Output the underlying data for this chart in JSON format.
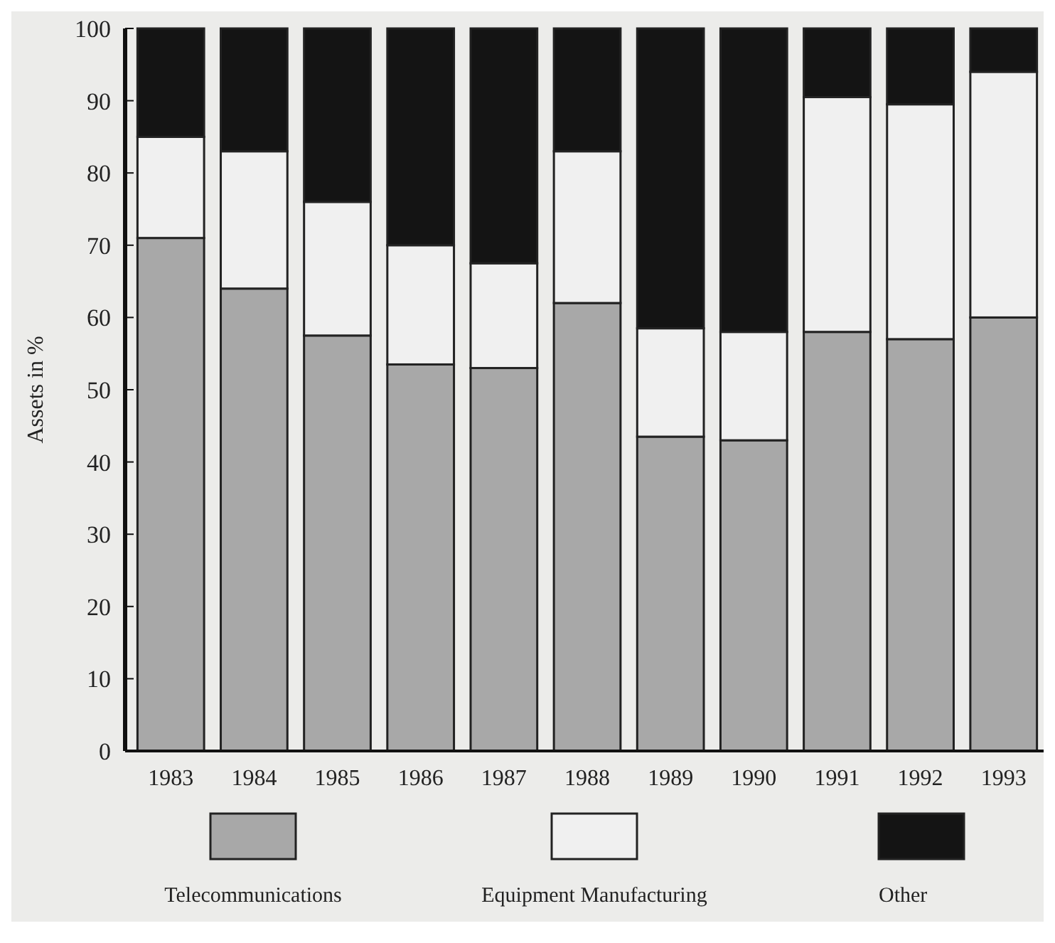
{
  "chart_data": {
    "type": "bar",
    "stacked": true,
    "ylabel": "Assets in %",
    "categories": [
      "1983",
      "1984",
      "1985",
      "1986",
      "1987",
      "1988",
      "1989",
      "1990",
      "1991",
      "1992",
      "1993"
    ],
    "series": [
      {
        "name": "Telecommunications",
        "color": "#a8a8a8",
        "values": [
          71,
          64,
          57.5,
          53.5,
          53,
          62,
          43.5,
          43,
          58,
          57,
          60
        ]
      },
      {
        "name": "Equipment Manufacturing",
        "color": "#f0f0f0",
        "values": [
          14,
          19,
          18.5,
          16.5,
          14.5,
          21,
          15,
          15,
          32.5,
          32.5,
          34
        ]
      },
      {
        "name": "Other",
        "color": "#141414",
        "values": [
          15,
          17,
          24,
          30,
          32.5,
          17,
          41.5,
          42,
          9.5,
          10.5,
          6
        ]
      }
    ],
    "ylim": [
      0,
      100
    ],
    "yticks": [
      0,
      10,
      20,
      30,
      40,
      50,
      60,
      70,
      80,
      90,
      100
    ],
    "grid": false,
    "legend": "bottom"
  }
}
